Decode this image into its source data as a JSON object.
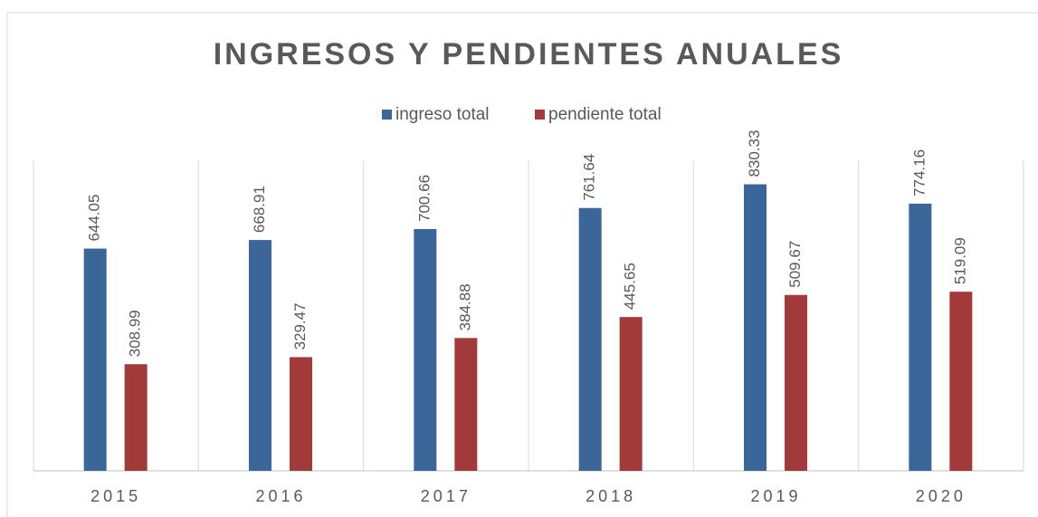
{
  "chart_data": {
    "type": "bar",
    "title": "INGRESOS Y PENDIENTES ANUALES",
    "categories": [
      "2015",
      "2016",
      "2017",
      "2018",
      "2019",
      "2020"
    ],
    "series": [
      {
        "name": "ingreso total",
        "color": "#3b6699",
        "values": [
          644.05,
          668.91,
          700.66,
          761.64,
          830.33,
          774.16
        ]
      },
      {
        "name": "pendiente total",
        "color": "#a33a3a",
        "values": [
          308.99,
          329.47,
          384.88,
          445.65,
          509.67,
          519.09
        ]
      }
    ],
    "ylim": [
      0,
      900
    ],
    "legend": "top",
    "grid": "vertical-separators"
  }
}
